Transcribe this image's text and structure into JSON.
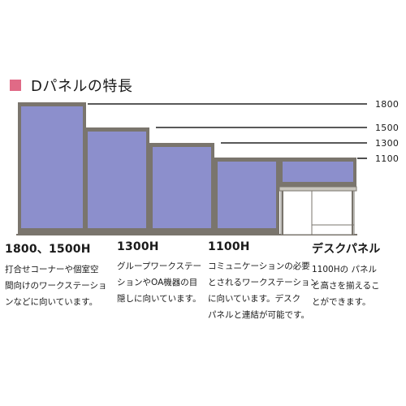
{
  "header": {
    "title": "Dパネルの特長",
    "accent_color": "#e06a86"
  },
  "heights": [
    "1800",
    "1500",
    "1300",
    "1100"
  ],
  "colors": {
    "panel_fill": "#8c8fcc",
    "frame": "#7a756d",
    "frame_light": "#c9c6be"
  },
  "columns": [
    {
      "heading": "1800、1500H",
      "lines": [
        "打合せコーナーや個室空",
        "間向けのワークステーショ",
        "ンなどに向いています。"
      ]
    },
    {
      "heading": "1300H",
      "lines": [
        "グループワークステー",
        "ションやOA機器の目",
        "隠しに向いています。"
      ]
    },
    {
      "heading": "1100H",
      "lines": [
        "コミュニケーションの必要",
        "とされるワークステーション",
        "に向いています。デスク",
        "パネルと連結が可能です。"
      ]
    },
    {
      "heading": "デスクパネル",
      "lines": [
        "1100Hの パネル",
        "と高さを揃えるこ",
        "とができます。"
      ]
    }
  ]
}
